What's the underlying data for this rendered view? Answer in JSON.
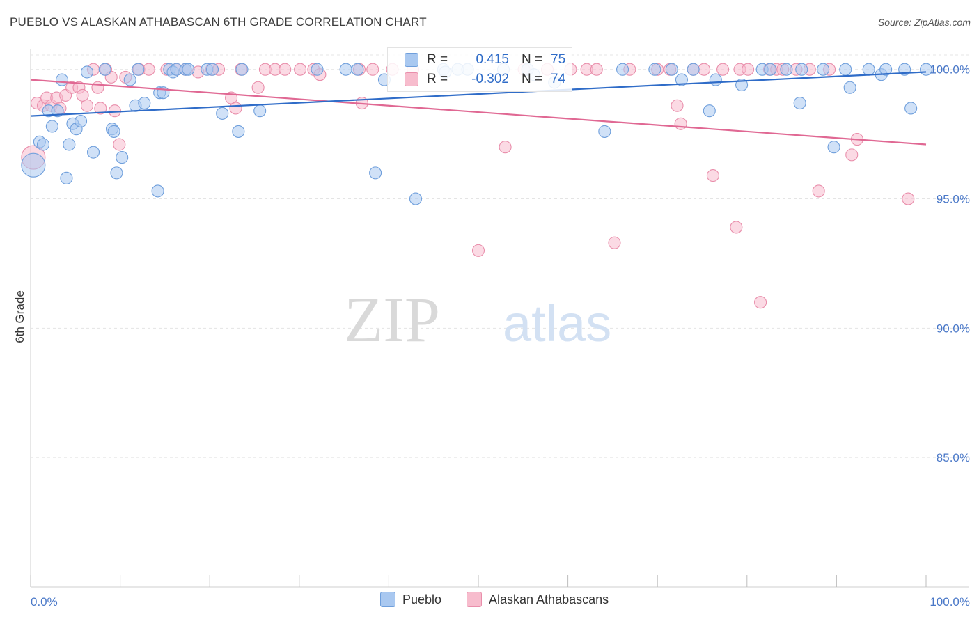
{
  "title": "PUEBLO VS ALASKAN ATHABASCAN 6TH GRADE CORRELATION CHART",
  "source": "Source: ZipAtlas.com",
  "watermark": {
    "zip": "ZIP",
    "atlas": "atlas"
  },
  "legend": {
    "series1": {
      "r_label": "R =",
      "r_value": "0.415",
      "n_label": "N =",
      "n_value": "75"
    },
    "series2": {
      "r_label": "R =",
      "r_value": "-0.302",
      "n_label": "N =",
      "n_value": "74"
    }
  },
  "bottom_legend": {
    "series1": "Pueblo",
    "series2": "Alaskan Athabascans"
  },
  "colors": {
    "blue_fill": "#a9c8f0",
    "blue_stroke": "#6f9fdc",
    "blue_line": "#2f6cc8",
    "pink_fill": "#f7bccd",
    "pink_stroke": "#e98eab",
    "pink_line": "#e06893",
    "tick_text": "#4a78c8",
    "grid": "#e4e4e4"
  },
  "chart_data": {
    "type": "scatter",
    "title": "PUEBLO VS ALASKAN ATHABASCAN 6TH GRADE CORRELATION CHART",
    "xlabel": "",
    "ylabel": "6th Grade",
    "xlim": [
      0,
      100
    ],
    "ylim": [
      80.0,
      100.8
    ],
    "x_tick_labels": [
      "0.0%",
      "100.0%"
    ],
    "y_ticks": [
      {
        "value": 100.0,
        "label": "100.0%"
      },
      {
        "value": 95.0,
        "label": "95.0%"
      },
      {
        "value": 90.0,
        "label": "90.0%"
      },
      {
        "value": 85.0,
        "label": "85.0%"
      }
    ],
    "series": [
      {
        "name": "Pueblo",
        "r": 0.415,
        "n": 75,
        "trend": [
          [
            0,
            98.2
          ],
          [
            100,
            99.9
          ]
        ],
        "points": [
          [
            0.3,
            96.3
          ],
          [
            1.0,
            97.2
          ],
          [
            1.4,
            97.1
          ],
          [
            2.0,
            98.4
          ],
          [
            2.4,
            97.8
          ],
          [
            3.0,
            98.4
          ],
          [
            3.5,
            99.6
          ],
          [
            4.0,
            95.8
          ],
          [
            4.3,
            97.1
          ],
          [
            4.7,
            97.9
          ],
          [
            5.1,
            97.7
          ],
          [
            5.6,
            98.0
          ],
          [
            6.3,
            99.9
          ],
          [
            7.0,
            96.8
          ],
          [
            8.3,
            100.0
          ],
          [
            9.1,
            97.7
          ],
          [
            9.3,
            97.6
          ],
          [
            9.6,
            96.0
          ],
          [
            10.2,
            96.6
          ],
          [
            11.1,
            99.6
          ],
          [
            11.7,
            98.6
          ],
          [
            12.0,
            100.0
          ],
          [
            12.7,
            98.7
          ],
          [
            14.2,
            95.3
          ],
          [
            14.4,
            99.1
          ],
          [
            14.8,
            99.1
          ],
          [
            15.5,
            100.0
          ],
          [
            15.9,
            99.9
          ],
          [
            16.3,
            100.0
          ],
          [
            17.3,
            100.0
          ],
          [
            17.6,
            100.0
          ],
          [
            19.7,
            100.0
          ],
          [
            20.3,
            100.0
          ],
          [
            21.4,
            98.3
          ],
          [
            23.2,
            97.6
          ],
          [
            23.6,
            100.0
          ],
          [
            25.6,
            98.4
          ],
          [
            32.0,
            100.0
          ],
          [
            35.2,
            100.0
          ],
          [
            36.5,
            100.0
          ],
          [
            38.5,
            96.0
          ],
          [
            39.5,
            99.6
          ],
          [
            43.0,
            95.0
          ],
          [
            46.1,
            100.0
          ],
          [
            46.3,
            99.9
          ],
          [
            47.7,
            100.0
          ],
          [
            48.8,
            100.0
          ],
          [
            52.8,
            100.0
          ],
          [
            55.5,
            100.0
          ],
          [
            56.2,
            99.8
          ],
          [
            58.5,
            99.5
          ],
          [
            64.1,
            97.6
          ],
          [
            66.1,
            100.0
          ],
          [
            69.7,
            100.0
          ],
          [
            71.6,
            100.0
          ],
          [
            72.7,
            99.6
          ],
          [
            74.0,
            100.0
          ],
          [
            75.8,
            98.4
          ],
          [
            76.5,
            99.6
          ],
          [
            79.4,
            99.4
          ],
          [
            81.7,
            100.0
          ],
          [
            82.6,
            100.0
          ],
          [
            84.4,
            100.0
          ],
          [
            85.9,
            98.7
          ],
          [
            86.1,
            100.0
          ],
          [
            88.5,
            100.0
          ],
          [
            89.7,
            97.0
          ],
          [
            91.0,
            100.0
          ],
          [
            91.5,
            99.3
          ],
          [
            93.6,
            100.0
          ],
          [
            95.0,
            99.8
          ],
          [
            95.5,
            100.0
          ],
          [
            97.6,
            100.0
          ],
          [
            98.3,
            98.5
          ],
          [
            100.0,
            100.0
          ]
        ]
      },
      {
        "name": "Alaskan Athabascans",
        "r": -0.302,
        "n": 74,
        "trend": [
          [
            0,
            99.6
          ],
          [
            100,
            97.1
          ]
        ],
        "points": [
          [
            0.3,
            96.6
          ],
          [
            0.7,
            98.7
          ],
          [
            1.4,
            98.6
          ],
          [
            1.8,
            98.9
          ],
          [
            2.3,
            98.6
          ],
          [
            2.9,
            98.9
          ],
          [
            3.3,
            98.5
          ],
          [
            3.9,
            99.0
          ],
          [
            4.6,
            99.3
          ],
          [
            5.4,
            99.3
          ],
          [
            5.8,
            99.0
          ],
          [
            6.3,
            98.6
          ],
          [
            7.0,
            100.0
          ],
          [
            7.5,
            99.3
          ],
          [
            7.8,
            98.5
          ],
          [
            8.4,
            100.0
          ],
          [
            9.0,
            99.7
          ],
          [
            9.4,
            98.4
          ],
          [
            9.9,
            97.1
          ],
          [
            10.6,
            99.7
          ],
          [
            12.1,
            100.0
          ],
          [
            13.2,
            100.0
          ],
          [
            15.2,
            100.0
          ],
          [
            16.3,
            100.0
          ],
          [
            17.3,
            100.0
          ],
          [
            18.7,
            99.9
          ],
          [
            20.2,
            100.0
          ],
          [
            21.0,
            100.0
          ],
          [
            22.4,
            98.9
          ],
          [
            22.9,
            98.5
          ],
          [
            23.5,
            100.0
          ],
          [
            25.4,
            99.3
          ],
          [
            26.2,
            100.0
          ],
          [
            27.3,
            100.0
          ],
          [
            28.4,
            100.0
          ],
          [
            30.1,
            100.0
          ],
          [
            31.6,
            100.0
          ],
          [
            32.3,
            99.8
          ],
          [
            36.7,
            100.0
          ],
          [
            37.0,
            98.7
          ],
          [
            38.2,
            100.0
          ],
          [
            40.4,
            100.0
          ],
          [
            42.7,
            100.0
          ],
          [
            50.0,
            93.0
          ],
          [
            53.0,
            97.0
          ],
          [
            55.1,
            100.0
          ],
          [
            57.7,
            100.0
          ],
          [
            60.3,
            100.0
          ],
          [
            62.1,
            100.0
          ],
          [
            63.2,
            100.0
          ],
          [
            65.2,
            93.3
          ],
          [
            66.9,
            100.0
          ],
          [
            70.0,
            100.0
          ],
          [
            71.4,
            100.0
          ],
          [
            72.2,
            98.6
          ],
          [
            72.6,
            97.9
          ],
          [
            74.0,
            100.0
          ],
          [
            75.2,
            100.0
          ],
          [
            76.2,
            95.9
          ],
          [
            77.3,
            100.0
          ],
          [
            78.8,
            93.9
          ],
          [
            79.2,
            100.0
          ],
          [
            80.1,
            100.0
          ],
          [
            81.5,
            91.0
          ],
          [
            82.5,
            100.0
          ],
          [
            83.3,
            100.0
          ],
          [
            84.0,
            100.0
          ],
          [
            85.5,
            100.0
          ],
          [
            87.0,
            100.0
          ],
          [
            88.0,
            95.3
          ],
          [
            89.2,
            100.0
          ],
          [
            91.7,
            96.7
          ],
          [
            92.3,
            97.3
          ],
          [
            98.0,
            95.0
          ]
        ]
      }
    ]
  }
}
